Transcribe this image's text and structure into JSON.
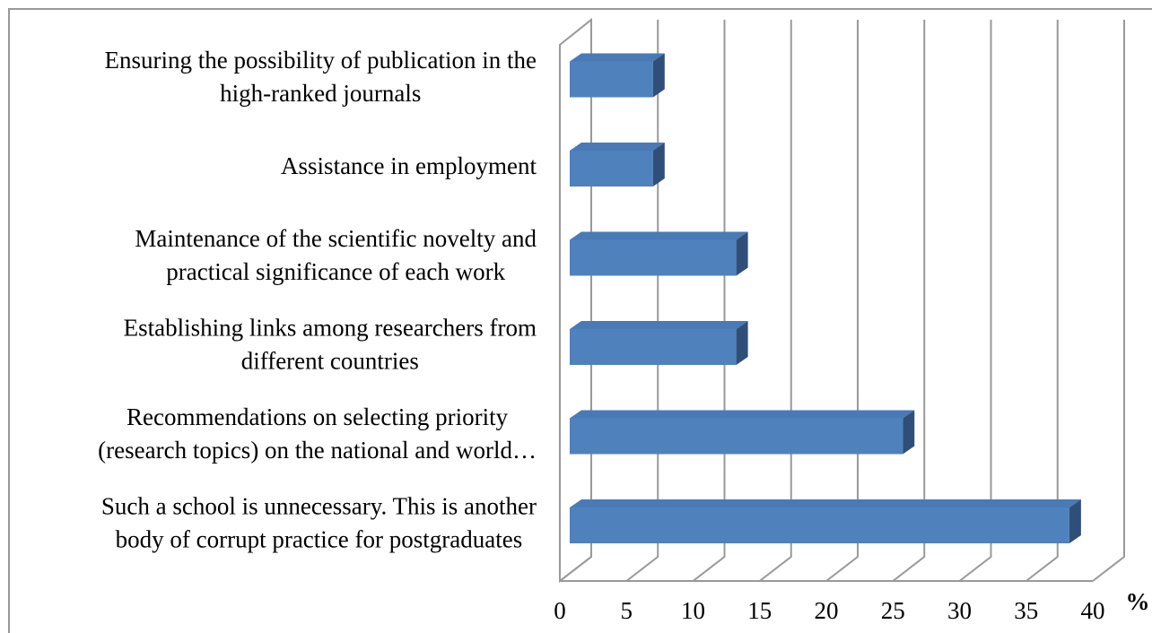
{
  "chart_data": {
    "type": "bar",
    "orientation": "horizontal",
    "three_d": true,
    "categories": [
      "Such a school is unnecessary. This is another\nbody of corrupt practice for postgraduates",
      "Recommendations on selecting priority\n(research topics) on the national and world…",
      "Establishing links among researchers from\ndifferent countries",
      "Maintenance of the scientific novelty and\npractical significance of each work",
      "Assistance in employment",
      "Ensuring the possibility of publication in the\nhigh-ranked journals"
    ],
    "values": [
      37.5,
      25,
      12.5,
      12.5,
      6.25,
      6.25
    ],
    "color": "#4f81bd",
    "x_label": "%",
    "xlim": [
      0,
      40
    ],
    "xticks": [
      0,
      5,
      10,
      15,
      20,
      25,
      30,
      35,
      40
    ],
    "grid": true
  }
}
